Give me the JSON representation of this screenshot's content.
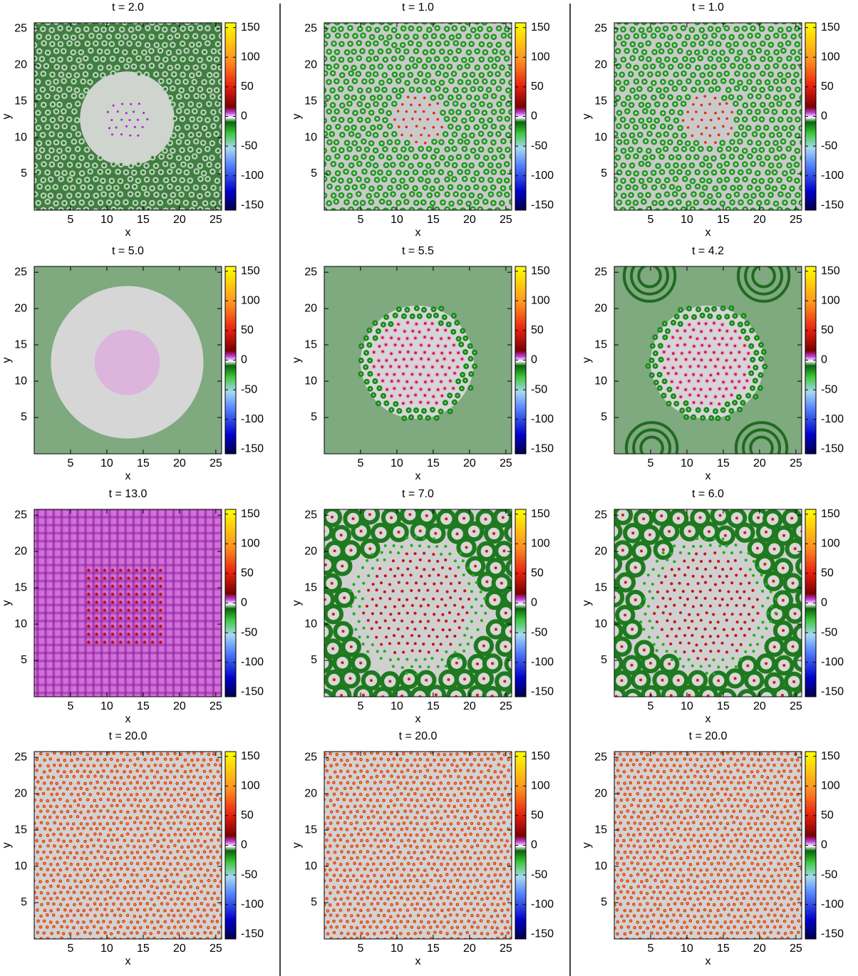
{
  "chart_data": [
    {
      "type": "heatmap",
      "title": "t =  2.0",
      "xlabel": "x",
      "ylabel": "y",
      "xlim": [
        0,
        25.8
      ],
      "ylim": [
        0,
        25.8
      ],
      "xticks": [
        5,
        10,
        15,
        20,
        25
      ],
      "yticks": [
        5,
        10,
        15,
        20,
        25
      ],
      "clim": [
        -158,
        158
      ],
      "cticks": [
        -150,
        -100,
        -50,
        0,
        50,
        100,
        150
      ]
    },
    {
      "type": "heatmap",
      "title": "t =  1.0",
      "xlabel": "x",
      "ylabel": "y",
      "xlim": [
        0,
        25.8
      ],
      "ylim": [
        0,
        25.8
      ],
      "xticks": [
        5,
        10,
        15,
        20,
        25
      ],
      "yticks": [
        5,
        10,
        15,
        20,
        25
      ],
      "clim": [
        -158,
        158
      ],
      "cticks": [
        -150,
        -100,
        -50,
        0,
        50,
        100,
        150
      ]
    },
    {
      "type": "heatmap",
      "title": "t =  1.0",
      "xlabel": "x",
      "ylabel": "y",
      "xlim": [
        0,
        25.8
      ],
      "ylim": [
        0,
        25.8
      ],
      "xticks": [
        5,
        10,
        15,
        20,
        25
      ],
      "yticks": [
        5,
        10,
        15,
        20,
        25
      ],
      "clim": [
        -158,
        158
      ],
      "cticks": [
        -150,
        -100,
        -50,
        0,
        50,
        100,
        150
      ]
    },
    {
      "type": "heatmap",
      "title": "t =  5.0",
      "xlabel": "x",
      "ylabel": "y",
      "xlim": [
        0,
        25.8
      ],
      "ylim": [
        0,
        25.8
      ],
      "xticks": [
        5,
        10,
        15,
        20,
        25
      ],
      "yticks": [
        5,
        10,
        15,
        20,
        25
      ],
      "clim": [
        -158,
        158
      ],
      "cticks": [
        -150,
        -100,
        -50,
        0,
        50,
        100,
        150
      ]
    },
    {
      "type": "heatmap",
      "title": "t =  5.5",
      "xlabel": "x",
      "ylabel": "y",
      "xlim": [
        0,
        25.8
      ],
      "ylim": [
        0,
        25.8
      ],
      "xticks": [
        5,
        10,
        15,
        20,
        25
      ],
      "yticks": [
        5,
        10,
        15,
        20,
        25
      ],
      "clim": [
        -158,
        158
      ],
      "cticks": [
        -150,
        -100,
        -50,
        0,
        50,
        100,
        150
      ]
    },
    {
      "type": "heatmap",
      "title": "t =  4.2",
      "xlabel": "x",
      "ylabel": "y",
      "xlim": [
        0,
        25.8
      ],
      "ylim": [
        0,
        25.8
      ],
      "xticks": [
        5,
        10,
        15,
        20,
        25
      ],
      "yticks": [
        5,
        10,
        15,
        20,
        25
      ],
      "clim": [
        -158,
        158
      ],
      "cticks": [
        -150,
        -100,
        -50,
        0,
        50,
        100,
        150
      ]
    },
    {
      "type": "heatmap",
      "title": "t =  13.0",
      "xlabel": "x",
      "ylabel": "y",
      "xlim": [
        0,
        25.8
      ],
      "ylim": [
        0,
        25.8
      ],
      "xticks": [
        5,
        10,
        15,
        20,
        25
      ],
      "yticks": [
        5,
        10,
        15,
        20,
        25
      ],
      "clim": [
        -158,
        158
      ],
      "cticks": [
        -150,
        -100,
        -50,
        0,
        50,
        100,
        150
      ]
    },
    {
      "type": "heatmap",
      "title": "t =  7.0",
      "xlabel": "x",
      "ylabel": "y",
      "xlim": [
        0,
        25.8
      ],
      "ylim": [
        0,
        25.8
      ],
      "xticks": [
        5,
        10,
        15,
        20,
        25
      ],
      "yticks": [
        5,
        10,
        15,
        20,
        25
      ],
      "clim": [
        -158,
        158
      ],
      "cticks": [
        -150,
        -100,
        -50,
        0,
        50,
        100,
        150
      ]
    },
    {
      "type": "heatmap",
      "title": "t =  6.0",
      "xlabel": "x",
      "ylabel": "y",
      "xlim": [
        0,
        25.8
      ],
      "ylim": [
        0,
        25.8
      ],
      "xticks": [
        5,
        10,
        15,
        20,
        25
      ],
      "yticks": [
        5,
        10,
        15,
        20,
        25
      ],
      "clim": [
        -158,
        158
      ],
      "cticks": [
        -150,
        -100,
        -50,
        0,
        50,
        100,
        150
      ]
    },
    {
      "type": "heatmap",
      "title": "t =  20.0",
      "xlabel": "x",
      "ylabel": "y",
      "xlim": [
        0,
        25.8
      ],
      "ylim": [
        0,
        25.8
      ],
      "xticks": [
        5,
        10,
        15,
        20,
        25
      ],
      "yticks": [
        5,
        10,
        15,
        20,
        25
      ],
      "clim": [
        -158,
        158
      ],
      "cticks": [
        -150,
        -100,
        -50,
        0,
        50,
        100,
        150
      ]
    },
    {
      "type": "heatmap",
      "title": "t =  20.0",
      "xlabel": "x",
      "ylabel": "y",
      "xlim": [
        0,
        25.8
      ],
      "ylim": [
        0,
        25.8
      ],
      "xticks": [
        5,
        10,
        15,
        20,
        25
      ],
      "yticks": [
        5,
        10,
        15,
        20,
        25
      ],
      "clim": [
        -158,
        158
      ],
      "cticks": [
        -150,
        -100,
        -50,
        0,
        50,
        100,
        150
      ]
    },
    {
      "type": "heatmap",
      "title": "t =  20.0",
      "xlabel": "x",
      "ylabel": "y",
      "xlim": [
        0,
        25.8
      ],
      "ylim": [
        0,
        25.8
      ],
      "xticks": [
        5,
        10,
        15,
        20,
        25
      ],
      "yticks": [
        5,
        10,
        15,
        20,
        25
      ],
      "clim": [
        -158,
        158
      ],
      "cticks": [
        -150,
        -100,
        -50,
        0,
        50,
        100,
        150
      ]
    }
  ]
}
